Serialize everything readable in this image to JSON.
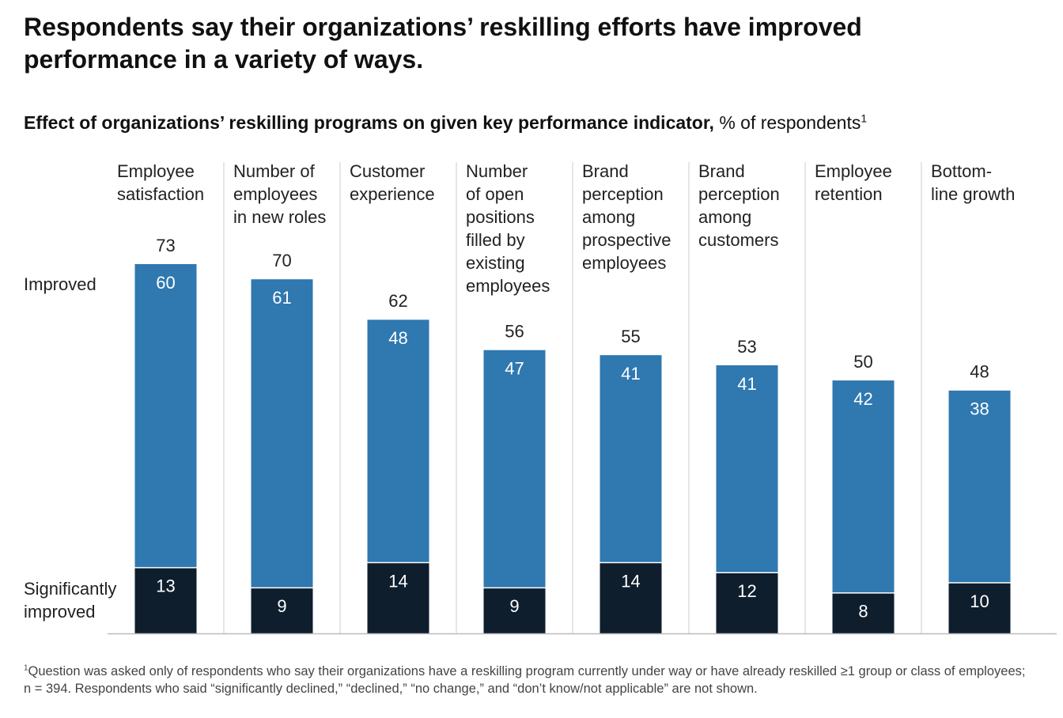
{
  "chart_data": {
    "type": "stacked-bar",
    "title": "Respondents say their organizations’ reskilling efforts have improved performance in a variety of ways.",
    "subtitle": "Effect of organizations’ reskilling programs on given key performance indicator,",
    "unit": "% of respondents",
    "note_marker": "1",
    "categories": [
      "Employee\nsatisfaction",
      "Number of\nemployees\nin new roles",
      "Customer\nexperience",
      "Number\nof open\npositions\nfilled by\nexisting\nemployees",
      "Brand\nperception\namong\nprospective\nemployees",
      "Brand\nperception\namong\ncustomers",
      "Employee\nretention",
      "Bottom-\nline growth"
    ],
    "series": [
      {
        "name": "Significantly improved",
        "color": "#0e1e2d",
        "values": [
          13,
          9,
          14,
          9,
          14,
          12,
          8,
          10
        ]
      },
      {
        "name": "Improved",
        "color": "#2f78b0",
        "values": [
          60,
          61,
          48,
          47,
          41,
          41,
          42,
          38
        ]
      }
    ],
    "totals": [
      73,
      70,
      62,
      56,
      55,
      53,
      50,
      48
    ],
    "ylim": [
      0,
      73
    ],
    "footnote": "Question was asked only of respondents who say their organizations have a reskilling program currently under way or have already reskilled ≥1 group or class of employees; n = 394. Respondents who said “significantly declined,” “declined,” “no change,” and “don’t know/not applicable” are not shown."
  }
}
